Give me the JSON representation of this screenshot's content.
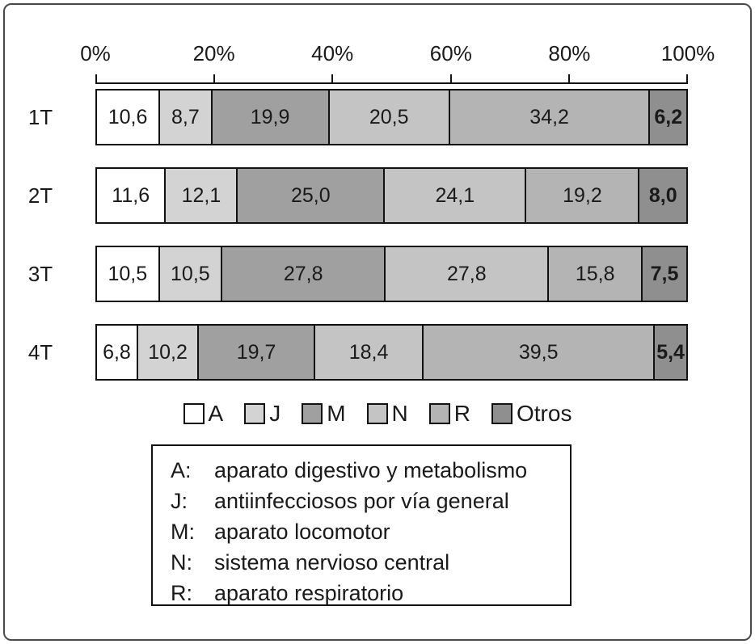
{
  "chart_data": {
    "type": "bar",
    "stacked": true,
    "orientation": "horizontal",
    "title": "",
    "x_axis": {
      "ticks": [
        "0%",
        "20%",
        "40%",
        "60%",
        "80%",
        "100%"
      ],
      "range": [
        0,
        100
      ],
      "grid": false
    },
    "categories": [
      "1T",
      "2T",
      "3T",
      "4T"
    ],
    "series": [
      {
        "key": "A",
        "color": "#ffffff",
        "values": [
          10.6,
          11.6,
          10.5,
          6.8
        ],
        "labels": [
          "10,6",
          "11,6",
          "10,5",
          "6,8"
        ],
        "bold_labels": false
      },
      {
        "key": "J",
        "color": "#d3d3d3",
        "values": [
          8.7,
          12.1,
          10.5,
          10.2
        ],
        "labels": [
          "8,7",
          "12,1",
          "10,5",
          "10,2"
        ],
        "bold_labels": false
      },
      {
        "key": "M",
        "color": "#a0a0a0",
        "values": [
          19.9,
          25.0,
          27.8,
          19.7
        ],
        "labels": [
          "19,9",
          "25,0",
          "27,8",
          "19,7"
        ],
        "bold_labels": false
      },
      {
        "key": "N",
        "color": "#c4c4c4",
        "values": [
          20.5,
          24.1,
          27.8,
          18.4
        ],
        "labels": [
          "20,5",
          "24,1",
          "27,8",
          "18,4"
        ],
        "bold_labels": false
      },
      {
        "key": "R",
        "color": "#b4b4b4",
        "values": [
          34.2,
          19.2,
          15.8,
          39.5
        ],
        "labels": [
          "34,2",
          "19,2",
          "15,8",
          "39,5"
        ],
        "bold_labels": false
      },
      {
        "key": "Otros",
        "color": "#8f8f8f",
        "values": [
          6.2,
          8.0,
          7.5,
          5.4
        ],
        "labels": [
          "6,2",
          "8,0",
          "7,5",
          "5,4"
        ],
        "bold_labels": true
      }
    ],
    "legend": {
      "position": "bottom",
      "entries": [
        "A",
        "J",
        "M",
        "N",
        "R",
        "Otros"
      ]
    },
    "notes": [
      {
        "key": "A:",
        "text": "aparato digestivo y metabolismo"
      },
      {
        "key": "J:",
        "text": "antiinfecciosos por vía general"
      },
      {
        "key": "M:",
        "text": "aparato locomotor"
      },
      {
        "key": "N:",
        "text": "sistema nervioso central"
      },
      {
        "key": "R:",
        "text": "aparato respiratorio"
      }
    ]
  }
}
